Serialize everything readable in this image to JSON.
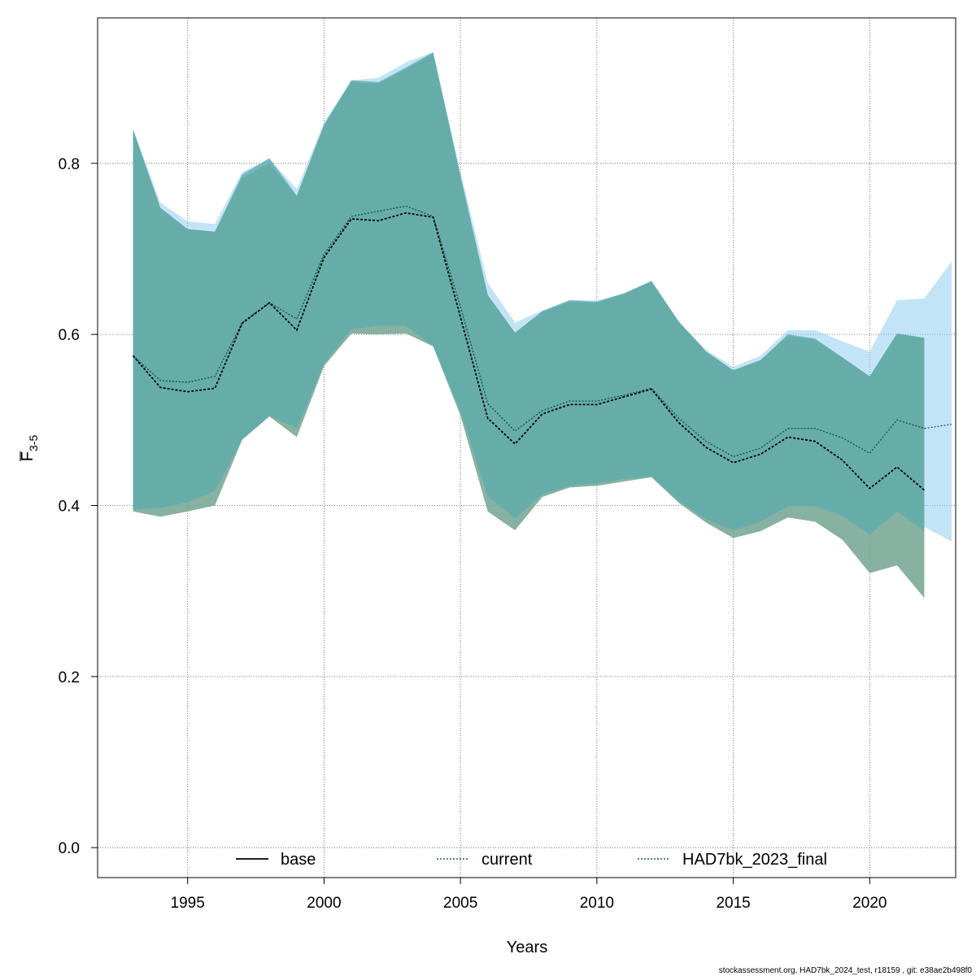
{
  "chart_data": {
    "type": "line",
    "title": "",
    "xlabel": "Years",
    "ylabel_main": "F",
    "ylabel_sub": "3-5",
    "xlim": [
      1991.7,
      2023.15
    ],
    "ylim": [
      -0.035,
      0.97
    ],
    "x_ticks": [
      1995,
      2000,
      2005,
      2010,
      2015,
      2020
    ],
    "y_ticks": [
      0.0,
      0.2,
      0.4,
      0.6,
      0.8
    ],
    "y_tick_labels": [
      "0.0",
      "0.2",
      "0.4",
      "0.6",
      "0.8"
    ],
    "grid": true,
    "legend_position": "bottom",
    "series": [
      {
        "name": "base",
        "color": "#000000",
        "dash": "solid",
        "x": [
          1993,
          1994,
          1995,
          1996,
          1997,
          1998,
          1999,
          2000,
          2001,
          2002,
          2003,
          2004,
          2005,
          2006,
          2007,
          2008,
          2009,
          2010,
          2011,
          2012,
          2013,
          2014,
          2015,
          2016,
          2017,
          2018,
          2019,
          2020,
          2021,
          2022
        ],
        "values": [
          0.575,
          0.538,
          0.533,
          0.537,
          0.613,
          0.637,
          0.605,
          0.69,
          0.735,
          0.733,
          0.742,
          0.737,
          0.62,
          0.502,
          0.472,
          0.507,
          0.518,
          0.518,
          0.527,
          0.536,
          0.497,
          0.468,
          0.45,
          0.46,
          0.48,
          0.475,
          0.453,
          0.42,
          0.445,
          0.418
        ],
        "upper": [
          0.84,
          0.748,
          0.723,
          0.72,
          0.783,
          0.8,
          0.762,
          0.845,
          0.895,
          0.893,
          0.91,
          0.928,
          0.785,
          0.646,
          0.602,
          0.627,
          0.638,
          0.638,
          0.648,
          0.662,
          0.615,
          0.58,
          0.558,
          0.57,
          0.598,
          0.594,
          0.573,
          0.551,
          0.601,
          0.596
        ],
        "lower": [
          0.393,
          0.387,
          0.393,
          0.4,
          0.477,
          0.504,
          0.48,
          0.563,
          0.601,
          0.6,
          0.601,
          0.586,
          0.505,
          0.393,
          0.371,
          0.41,
          0.421,
          0.423,
          0.428,
          0.433,
          0.403,
          0.38,
          0.362,
          0.37,
          0.386,
          0.381,
          0.36,
          0.321,
          0.33,
          0.292
        ]
      },
      {
        "name": "current",
        "color": "#1f5a96",
        "dash": "dotted",
        "x": [
          1993,
          1994,
          1995,
          1996,
          1997,
          1998,
          1999,
          2000,
          2001,
          2002,
          2003,
          2004,
          2005,
          2006,
          2007,
          2008,
          2009,
          2010,
          2011,
          2012,
          2013,
          2014,
          2015,
          2016,
          2017,
          2018,
          2019,
          2020,
          2021,
          2022,
          2023
        ],
        "values": [
          0.575,
          0.546,
          0.544,
          0.551,
          0.614,
          0.637,
          0.618,
          0.694,
          0.738,
          0.744,
          0.75,
          0.738,
          0.632,
          0.519,
          0.487,
          0.511,
          0.522,
          0.522,
          0.529,
          0.537,
          0.502,
          0.475,
          0.457,
          0.467,
          0.49,
          0.49,
          0.479,
          0.461,
          0.5,
          0.49,
          0.495
        ],
        "upper": [
          0.84,
          0.754,
          0.732,
          0.729,
          0.79,
          0.805,
          0.77,
          0.848,
          0.897,
          0.9,
          0.918,
          0.93,
          0.79,
          0.66,
          0.614,
          0.628,
          0.64,
          0.64,
          0.648,
          0.663,
          0.615,
          0.582,
          0.562,
          0.575,
          0.605,
          0.605,
          0.592,
          0.58,
          0.64,
          0.642,
          0.685
        ],
        "lower": [
          0.395,
          0.398,
          0.405,
          0.418,
          0.477,
          0.505,
          0.492,
          0.566,
          0.606,
          0.613,
          0.611,
          0.586,
          0.513,
          0.411,
          0.385,
          0.413,
          0.423,
          0.426,
          0.431,
          0.434,
          0.406,
          0.384,
          0.371,
          0.382,
          0.4,
          0.4,
          0.389,
          0.366,
          0.394,
          0.375,
          0.358
        ]
      },
      {
        "name": "HAD7bk_2023_final",
        "color": "#1a5e4a",
        "dash": "dotted",
        "x": [
          1993,
          1994,
          1995,
          1996,
          1997,
          1998,
          1999,
          2000,
          2001,
          2002,
          2003,
          2004,
          2005,
          2006,
          2007,
          2008,
          2009,
          2010,
          2011,
          2012,
          2013,
          2014,
          2015,
          2016,
          2017,
          2018,
          2019,
          2020,
          2021,
          2022
        ],
        "values": [
          0.575,
          0.546,
          0.544,
          0.551,
          0.614,
          0.637,
          0.618,
          0.694,
          0.738,
          0.744,
          0.75,
          0.738,
          0.632,
          0.519,
          0.487,
          0.511,
          0.522,
          0.522,
          0.529,
          0.537,
          0.502,
          0.475,
          0.457,
          0.467,
          0.49,
          0.49,
          0.479,
          0.461,
          0.5,
          0.49
        ],
        "upper": [
          0.838,
          0.748,
          0.723,
          0.72,
          0.787,
          0.806,
          0.762,
          0.845,
          0.897,
          0.895,
          0.912,
          0.93,
          0.785,
          0.646,
          0.602,
          0.627,
          0.64,
          0.638,
          0.648,
          0.662,
          0.615,
          0.58,
          0.558,
          0.57,
          0.6,
          0.595,
          0.573,
          0.551,
          0.601,
          0.596
        ],
        "lower": [
          0.395,
          0.397,
          0.404,
          0.417,
          0.477,
          0.505,
          0.49,
          0.566,
          0.606,
          0.61,
          0.61,
          0.586,
          0.51,
          0.411,
          0.385,
          0.413,
          0.423,
          0.426,
          0.431,
          0.434,
          0.406,
          0.384,
          0.371,
          0.381,
          0.399,
          0.399,
          0.388,
          0.366,
          0.393,
          0.37
        ]
      }
    ],
    "band_colors": {
      "current": "#87c9ef",
      "base": "#7aa897",
      "HAD7bk_2023_final": "#5fadad"
    }
  },
  "footer_note": "stockassessment.org, HAD7bk_2024_test, r18159 , git: e38ae2b498f0"
}
